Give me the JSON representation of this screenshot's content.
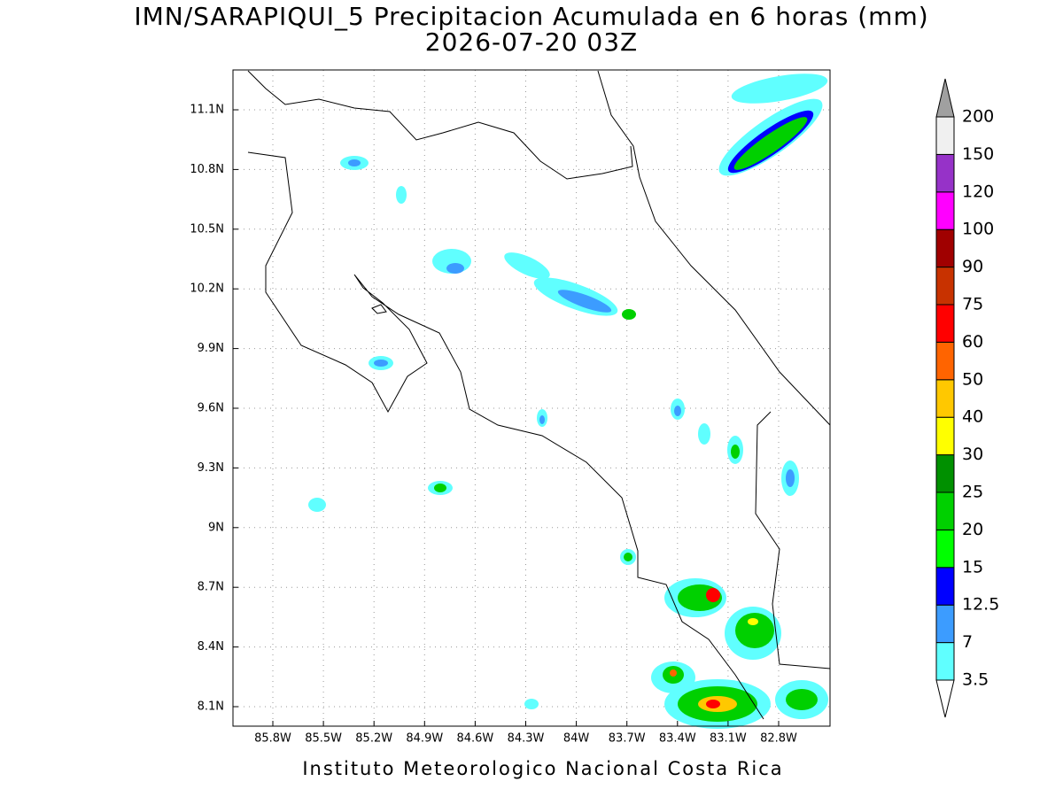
{
  "title": "IMN/SARAPIQUI_5 Precipitacion Acumulada en 6 horas (mm)",
  "subtitle": "2026-07-20 03Z",
  "map": {
    "lon_labels": [
      "85.8W",
      "85.5W",
      "85.2W",
      "84.9W",
      "84.6W",
      "84.3W",
      "84W",
      "83.7W",
      "83.4W",
      "83.1W",
      "82.8W"
    ],
    "lat_labels": [
      "11.1N",
      "10.8N",
      "10.5N",
      "10.2N",
      "9.9N",
      "9.6N",
      "9.3N",
      "9N",
      "8.7N",
      "8.4N",
      "8.1N"
    ]
  },
  "colorbar": {
    "labels": [
      "3.5",
      "7",
      "12.5",
      "15",
      "20",
      "25",
      "30",
      "40",
      "50",
      "60",
      "75",
      "90",
      "100",
      "120",
      "150",
      "200"
    ],
    "colors": [
      "#ffffff",
      "#60ffff",
      "#3c9cff",
      "#0000ff",
      "#00ff00",
      "#00d000",
      "#009000",
      "#ffff00",
      "#ffc800",
      "#ff6400",
      "#ff0000",
      "#c83200",
      "#a00000",
      "#ff00ff",
      "#9632c8",
      "#f0f0f0",
      "#a0a0a0"
    ]
  },
  "footer": "Instituto Meteorologico Nacional Costa Rica"
}
